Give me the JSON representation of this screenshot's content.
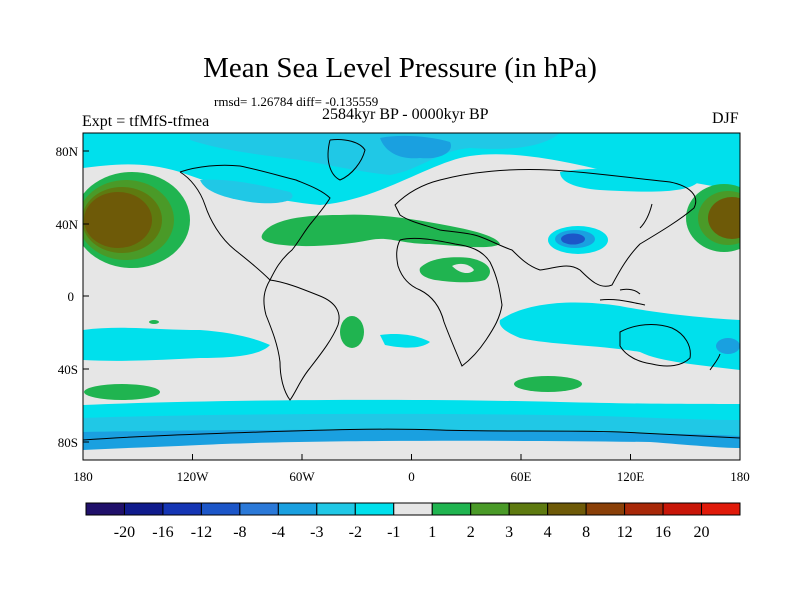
{
  "title": "Mean Sea Level Pressure (in hPa)",
  "stats": "rmsd= 1.26784 diff= -0.135559",
  "period": "2584kyr BP - 0000kyr BP",
  "experiment": "Expt = tfMfS-tfmea",
  "season": "DJF",
  "lat_ticks": [
    "80N",
    "40N",
    "0",
    "40S",
    "80S"
  ],
  "lon_ticks": [
    "180",
    "120W",
    "60W",
    "0",
    "60E",
    "120E",
    "180"
  ],
  "colorbar": {
    "colors": [
      "#20106a",
      "#101b8c",
      "#1535b4",
      "#1c56c8",
      "#2b79d8",
      "#1aa0e0",
      "#20c8e6",
      "#00e0ec",
      "#e6e6e6",
      "#20b450",
      "#4a9a28",
      "#5e7a10",
      "#6e5a08",
      "#8a4008",
      "#a82808",
      "#c81608",
      "#e01a0a"
    ],
    "labels": [
      "-20",
      "-16",
      "-12",
      "-8",
      "-4",
      "-3",
      "-2",
      "-1",
      "1",
      "2",
      "3",
      "4",
      "8",
      "12",
      "16",
      "20"
    ]
  },
  "colors": {
    "background_neutral": "#e6e6e6",
    "neg1": "#00e0ec",
    "neg2": "#20c8e6",
    "neg3": "#1aa0e0",
    "neg4": "#2b79d8",
    "neg8": "#1c56c8",
    "pos1": "#20b450",
    "pos2": "#4a9a28",
    "pos3": "#5e7a10",
    "pos4": "#6e5a08"
  }
}
